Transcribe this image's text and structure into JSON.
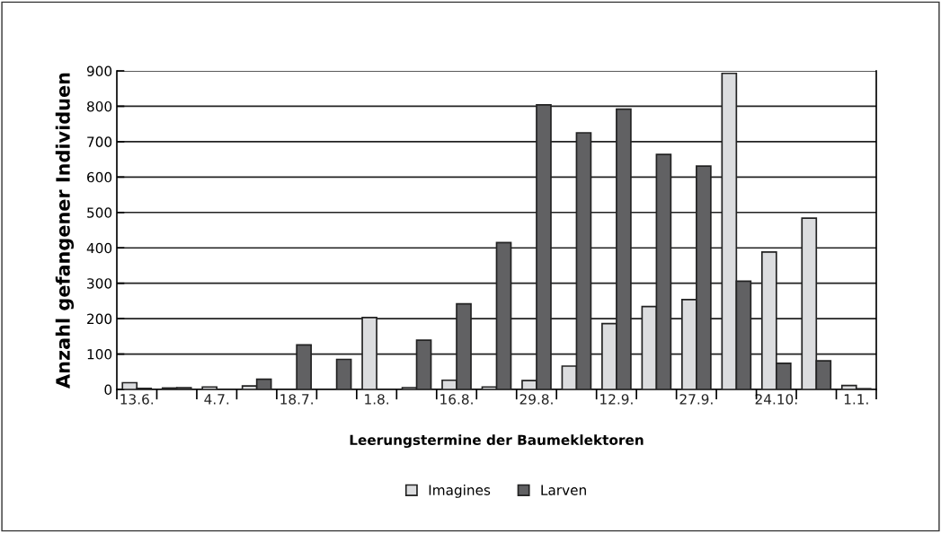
{
  "chart_data": {
    "type": "bar",
    "xlabel": "Leerungstermine der Baumeklektoren",
    "ylabel": "Anzahl gefangener Individuen",
    "categories": [
      "13.6.",
      null,
      "4.7.",
      null,
      "18.7.",
      null,
      "1.8.",
      null,
      "16.8.",
      null,
      "29.8.",
      null,
      "12.9.",
      null,
      "27.9.",
      null,
      "24.10.",
      null,
      "1.1."
    ],
    "series": [
      {
        "name": "Imagines",
        "color": "#dcdddf",
        "values": [
          19,
          4,
          7,
          10,
          0,
          0,
          203,
          5,
          26,
          7,
          25,
          66,
          186,
          234,
          254,
          893,
          388,
          484,
          11
        ]
      },
      {
        "name": "Larven",
        "color": "#616163",
        "values": [
          3,
          5,
          0,
          29,
          126,
          85,
          0,
          139,
          242,
          415,
          804,
          725,
          792,
          664,
          631,
          306,
          74,
          81,
          2
        ]
      }
    ],
    "ylim": [
      0,
      900
    ],
    "yticks": [
      0,
      100,
      200,
      300,
      400,
      500,
      600,
      700,
      800,
      900
    ],
    "grid": "y",
    "legend": "bottom"
  }
}
